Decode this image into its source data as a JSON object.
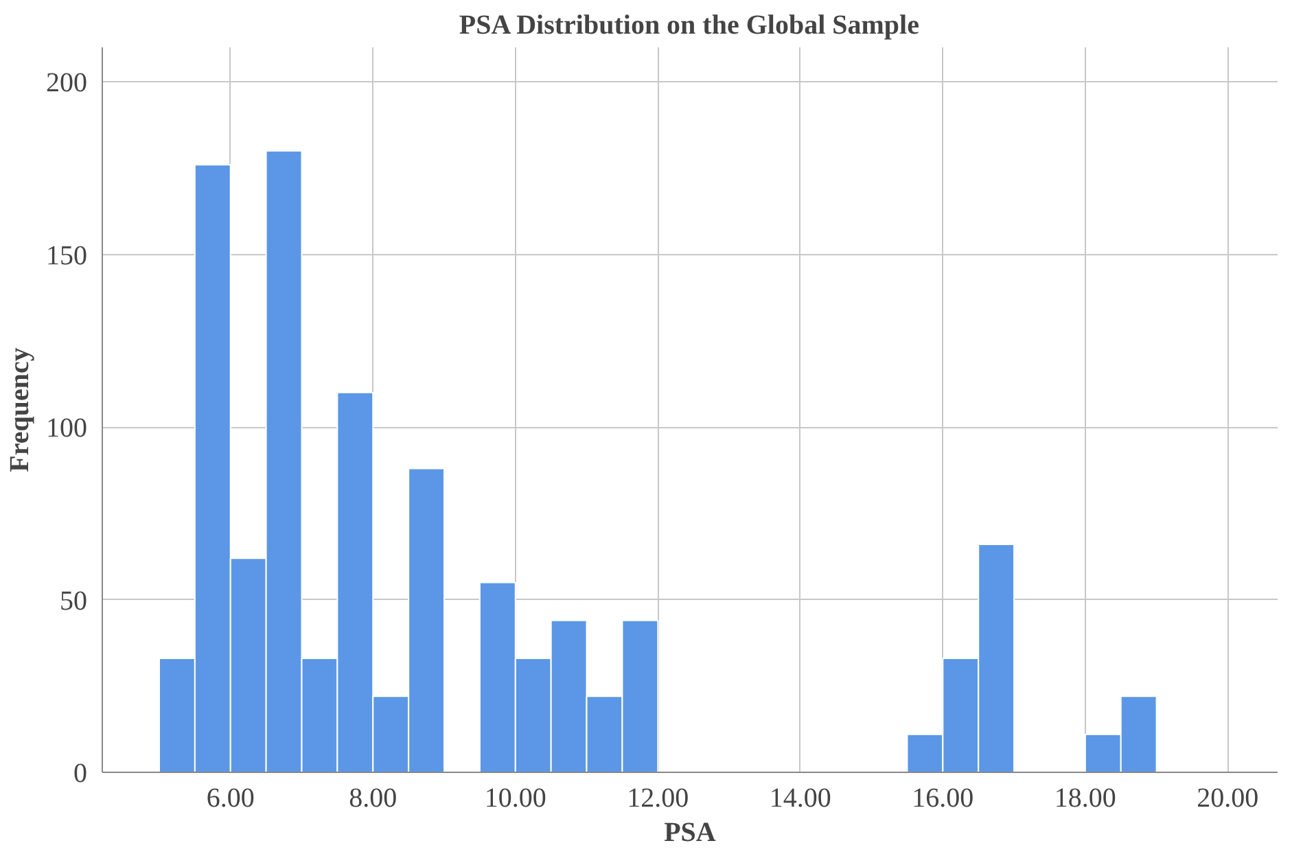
{
  "chart_data": {
    "type": "histogram",
    "title": "PSA Distribution on the Global Sample",
    "xlabel": "PSA",
    "ylabel": "Frequency",
    "bins": [
      5.0,
      5.5,
      6.0,
      6.5,
      7.0,
      7.5,
      8.0,
      8.5,
      9.0,
      9.5,
      10.0,
      10.5,
      11.0,
      11.5,
      12.0,
      12.5,
      13.0,
      13.5,
      14.0,
      14.5,
      15.0,
      15.5,
      16.0,
      16.5,
      17.0,
      17.5,
      18.0,
      18.5,
      19.0
    ],
    "values": [
      33,
      176,
      62,
      180,
      33,
      110,
      22,
      88,
      0,
      55,
      33,
      44,
      22,
      44,
      0,
      0,
      0,
      0,
      0,
      0,
      0,
      11,
      33,
      66,
      0,
      0,
      11,
      22
    ],
    "color": "#5b97e6",
    "xlim": [
      4.2,
      20.7
    ],
    "ylim": [
      0,
      210
    ],
    "xticks": [
      {
        "value": 6,
        "label": "6.00"
      },
      {
        "value": 8,
        "label": "8.00"
      },
      {
        "value": 10,
        "label": "10.00"
      },
      {
        "value": 12,
        "label": "12.00"
      },
      {
        "value": 14,
        "label": "14.00"
      },
      {
        "value": 16,
        "label": "16.00"
      },
      {
        "value": 18,
        "label": "18.00"
      },
      {
        "value": 20,
        "label": "20.00"
      }
    ],
    "yticks": [
      0,
      50,
      100,
      150,
      200
    ],
    "grid": true
  }
}
